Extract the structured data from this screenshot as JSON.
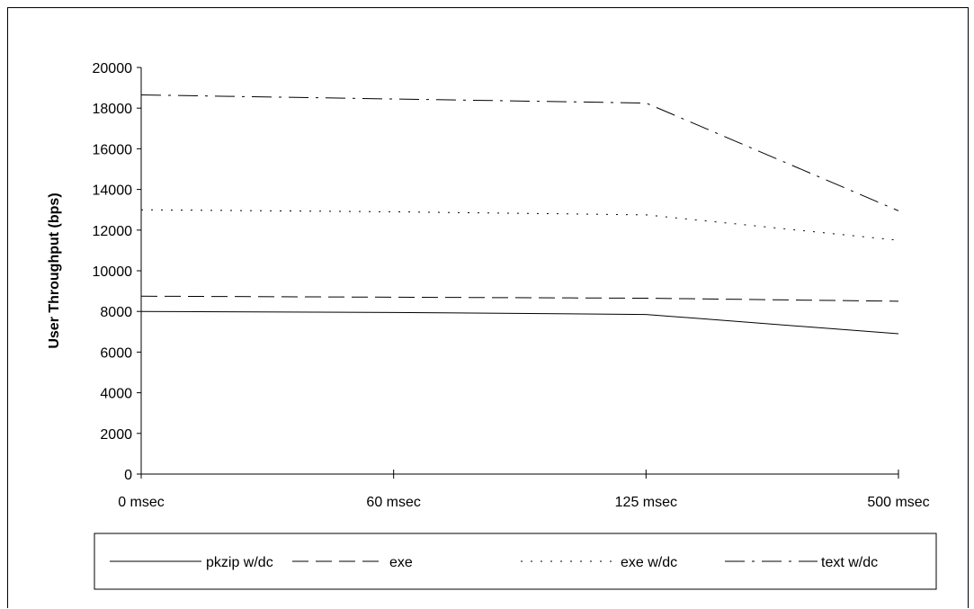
{
  "chart_data": {
    "type": "line",
    "title": "",
    "xlabel": "",
    "ylabel": "User Throughput (bps)",
    "categories": [
      "0 msec",
      "60 msec",
      "125 msec",
      "500 msec"
    ],
    "ylim": [
      0,
      20000
    ],
    "yticks": [
      "0",
      "2000",
      "4000",
      "6000",
      "8000",
      "10000",
      "12000",
      "14000",
      "16000",
      "18000",
      "20000"
    ],
    "grid": false,
    "legend_position": "bottom",
    "series": [
      {
        "name": "pkzip w/dc",
        "values": [
          8000,
          7950,
          7850,
          6900
        ],
        "style": "solid"
      },
      {
        "name": "exe",
        "values": [
          8750,
          8700,
          8650,
          8500
        ],
        "style": "dashed"
      },
      {
        "name": "exe w/dc",
        "values": [
          13000,
          12900,
          12750,
          11500
        ],
        "style": "dotted"
      },
      {
        "name": "text w/dc",
        "values": [
          18650,
          18450,
          18250,
          12950
        ],
        "style": "dash-dot"
      }
    ]
  }
}
